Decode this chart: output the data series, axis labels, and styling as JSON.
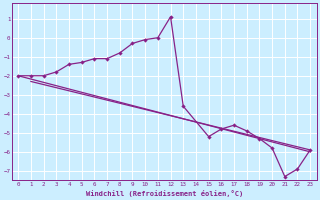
{
  "xlabel": "Windchill (Refroidissement éolien,°C)",
  "bg_color": "#cceeff",
  "line_color": "#882288",
  "grid_color": "#ffffff",
  "xlim": [
    -0.5,
    23.5
  ],
  "ylim": [
    -7.5,
    1.8
  ],
  "xticks": [
    0,
    1,
    2,
    3,
    4,
    5,
    6,
    7,
    8,
    9,
    10,
    11,
    12,
    13,
    14,
    15,
    16,
    17,
    18,
    19,
    20,
    21,
    22,
    23
  ],
  "yticks": [
    -7,
    -6,
    -5,
    -4,
    -3,
    -2,
    -1,
    0,
    1
  ],
  "line1_x": [
    0,
    1,
    2,
    3,
    4,
    5,
    6,
    7,
    8,
    9,
    10,
    11,
    12,
    13,
    15,
    16,
    17,
    18,
    19,
    20,
    21,
    22,
    23
  ],
  "line1_y": [
    -2.0,
    -2.0,
    -2.0,
    -1.8,
    -1.4,
    -1.3,
    -1.1,
    -1.1,
    -0.8,
    -0.3,
    -0.1,
    0.0,
    1.1,
    -3.6,
    -5.2,
    -4.8,
    -4.6,
    -4.9,
    -5.3,
    -5.8,
    -7.3,
    -6.9,
    -5.9
  ],
  "line2_x": [
    0,
    23
  ],
  "line2_y": [
    -2.0,
    -6.0
  ],
  "line3_x": [
    1,
    23
  ],
  "line3_y": [
    -2.3,
    -5.9
  ]
}
